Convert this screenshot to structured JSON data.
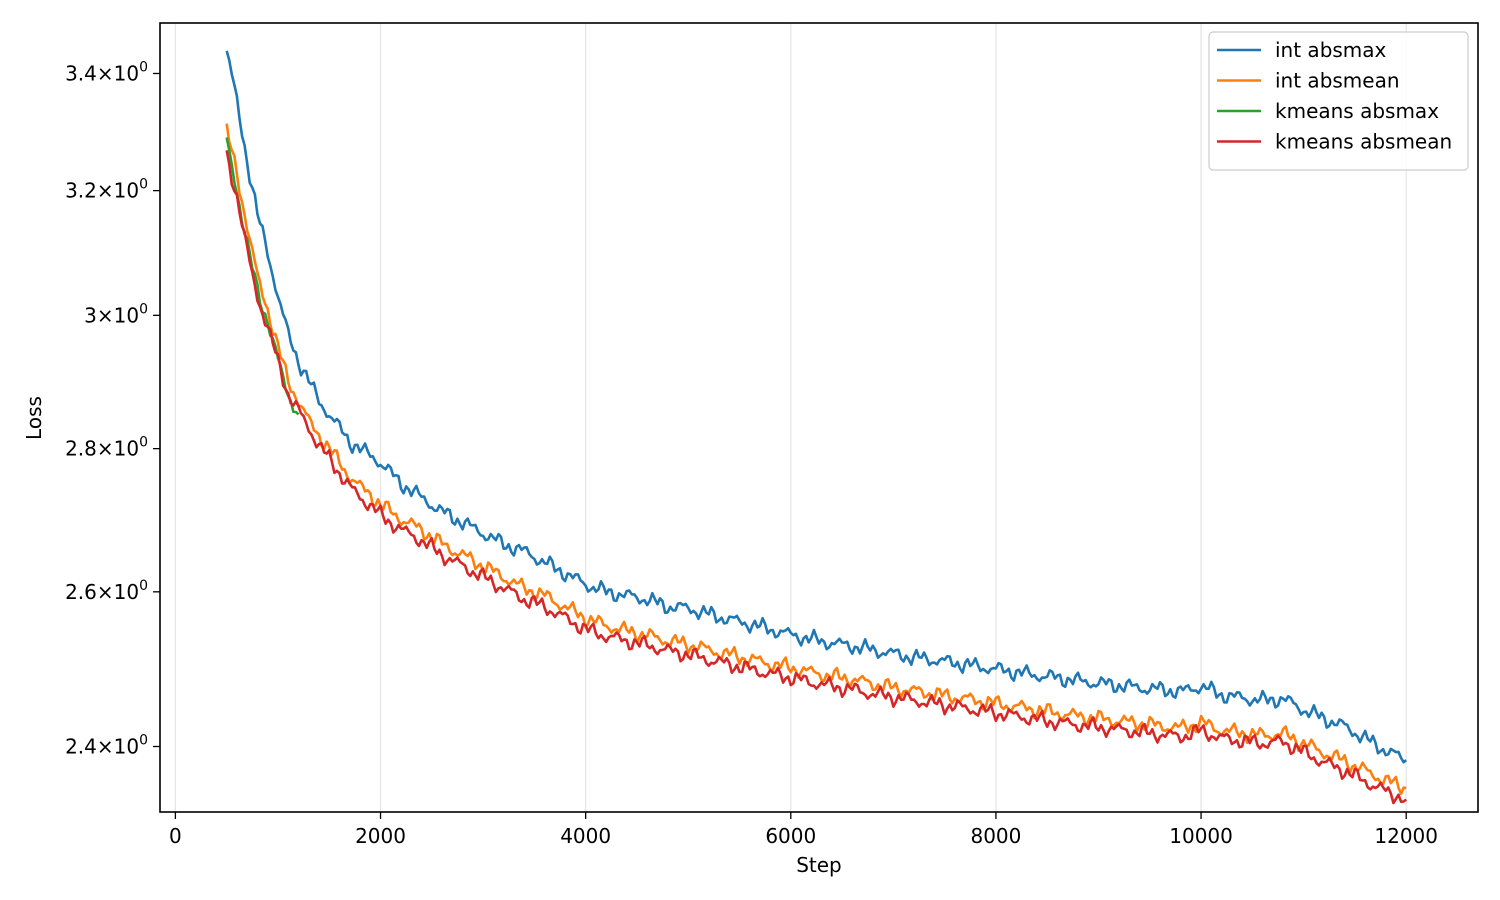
{
  "chart_data": {
    "type": "line",
    "title": "",
    "xlabel": "Step",
    "ylabel": "Loss",
    "xlim": [
      -150,
      12700
    ],
    "ylim": [
      2.32,
      3.49
    ],
    "yscale": "log",
    "grid": {
      "x": true,
      "y": false
    },
    "legend_position": "top-right",
    "x_ticks": [
      {
        "value": 0,
        "label": "0"
      },
      {
        "value": 2000,
        "label": "2000"
      },
      {
        "value": 4000,
        "label": "4000"
      },
      {
        "value": 6000,
        "label": "6000"
      },
      {
        "value": 8000,
        "label": "8000"
      },
      {
        "value": 10000,
        "label": "10000"
      },
      {
        "value": 12000,
        "label": "12000"
      }
    ],
    "y_ticks": [
      {
        "value": 2.4,
        "base": "2.4",
        "exp": "0"
      },
      {
        "value": 2.6,
        "base": "2.6",
        "exp": "0"
      },
      {
        "value": 2.8,
        "base": "2.8",
        "exp": "0"
      },
      {
        "value": 3.0,
        "base": "3",
        "exp": "0"
      },
      {
        "value": 3.2,
        "base": "3.2",
        "exp": "0"
      },
      {
        "value": 3.4,
        "base": "3.4",
        "exp": "0"
      }
    ],
    "series": [
      {
        "name": "int absmax",
        "color": "#1f77b4",
        "x": [
          500,
          600,
          700,
          800,
          900,
          1000,
          1100,
          1200,
          1300,
          1400,
          1500,
          1600,
          1700,
          1800,
          1900,
          2000,
          2200,
          2400,
          2600,
          2800,
          3000,
          3200,
          3400,
          3600,
          3800,
          4000,
          4200,
          4400,
          4600,
          4800,
          5000,
          5200,
          5400,
          5600,
          5800,
          6000,
          6200,
          6400,
          6600,
          6800,
          7000,
          7200,
          7400,
          7600,
          7800,
          8000,
          8200,
          8400,
          8600,
          8800,
          9000,
          9200,
          9400,
          9600,
          9800,
          10000,
          10200,
          10400,
          10600,
          10800,
          11000,
          11200,
          11400,
          11600,
          11800,
          12000
        ],
        "y": [
          3.44,
          3.35,
          3.25,
          3.16,
          3.1,
          3.03,
          2.97,
          2.93,
          2.9,
          2.87,
          2.85,
          2.83,
          2.81,
          2.8,
          2.79,
          2.78,
          2.75,
          2.73,
          2.71,
          2.695,
          2.68,
          2.665,
          2.655,
          2.64,
          2.625,
          2.61,
          2.6,
          2.595,
          2.59,
          2.58,
          2.578,
          2.57,
          2.563,
          2.557,
          2.55,
          2.543,
          2.537,
          2.532,
          2.528,
          2.523,
          2.518,
          2.513,
          2.51,
          2.506,
          2.502,
          2.498,
          2.494,
          2.49,
          2.487,
          2.483,
          2.48,
          2.477,
          2.474,
          2.472,
          2.469,
          2.476,
          2.465,
          2.461,
          2.458,
          2.46,
          2.446,
          2.435,
          2.425,
          2.41,
          2.395,
          2.383
        ]
      },
      {
        "name": "int absmean",
        "color": "#ff7f0e",
        "x": [
          500,
          600,
          700,
          800,
          900,
          1000,
          1100,
          1200,
          1300,
          1400,
          1500,
          1600,
          1700,
          1800,
          1900,
          2000,
          2200,
          2400,
          2600,
          2800,
          3000,
          3200,
          3400,
          3600,
          3800,
          4000,
          4200,
          4400,
          4600,
          4800,
          5000,
          5200,
          5400,
          5600,
          5800,
          6000,
          6200,
          6400,
          6600,
          6800,
          7000,
          7200,
          7400,
          7600,
          7800,
          8000,
          8200,
          8400,
          8600,
          8800,
          9000,
          9200,
          9400,
          9600,
          9800,
          10000,
          10200,
          10400,
          10600,
          10800,
          11000,
          11200,
          11400,
          11600,
          11800,
          12000
        ],
        "y": [
          3.3,
          3.23,
          3.14,
          3.06,
          3.01,
          2.95,
          2.9,
          2.87,
          2.84,
          2.82,
          2.8,
          2.78,
          2.76,
          2.745,
          2.735,
          2.72,
          2.7,
          2.685,
          2.665,
          2.65,
          2.635,
          2.62,
          2.605,
          2.595,
          2.58,
          2.565,
          2.555,
          2.548,
          2.542,
          2.535,
          2.53,
          2.523,
          2.517,
          2.511,
          2.505,
          2.5,
          2.494,
          2.489,
          2.485,
          2.479,
          2.474,
          2.47,
          2.466,
          2.462,
          2.458,
          2.454,
          2.45,
          2.446,
          2.442,
          2.438,
          2.435,
          2.432,
          2.429,
          2.426,
          2.423,
          2.43,
          2.42,
          2.417,
          2.414,
          2.416,
          2.404,
          2.392,
          2.382,
          2.37,
          2.358,
          2.349
        ]
      },
      {
        "name": "kmeans absmax",
        "color": "#2ca02c",
        "x": [
          500,
          600,
          700,
          800,
          900,
          1000,
          1100,
          1200
        ],
        "y": [
          3.285,
          3.2,
          3.11,
          3.04,
          2.99,
          2.93,
          2.88,
          2.85
        ]
      },
      {
        "name": "kmeans absmean",
        "color": "#d62728",
        "x": [
          500,
          600,
          700,
          800,
          900,
          1000,
          1100,
          1200,
          1300,
          1400,
          1500,
          1600,
          1700,
          1800,
          1900,
          2000,
          2200,
          2400,
          2600,
          2800,
          3000,
          3200,
          3400,
          3600,
          3800,
          4000,
          4200,
          4400,
          4600,
          4800,
          5000,
          5200,
          5400,
          5600,
          5800,
          6000,
          6200,
          6400,
          6600,
          6800,
          7000,
          7200,
          7400,
          7600,
          7800,
          8000,
          8200,
          8400,
          8600,
          8800,
          9000,
          9200,
          9400,
          9600,
          9800,
          10000,
          10200,
          10400,
          10600,
          10800,
          11000,
          11200,
          11400,
          11600,
          11800,
          12000
        ],
        "y": [
          3.26,
          3.19,
          3.1,
          3.03,
          2.98,
          2.93,
          2.88,
          2.855,
          2.83,
          2.805,
          2.785,
          2.765,
          2.745,
          2.73,
          2.72,
          2.705,
          2.685,
          2.67,
          2.65,
          2.635,
          2.62,
          2.605,
          2.59,
          2.58,
          2.565,
          2.55,
          2.541,
          2.535,
          2.529,
          2.522,
          2.517,
          2.51,
          2.504,
          2.498,
          2.492,
          2.487,
          2.481,
          2.476,
          2.472,
          2.466,
          2.462,
          2.458,
          2.454,
          2.45,
          2.446,
          2.442,
          2.438,
          2.434,
          2.43,
          2.427,
          2.424,
          2.421,
          2.418,
          2.415,
          2.412,
          2.42,
          2.41,
          2.407,
          2.404,
          2.406,
          2.393,
          2.38,
          2.37,
          2.357,
          2.345,
          2.335
        ]
      }
    ]
  }
}
